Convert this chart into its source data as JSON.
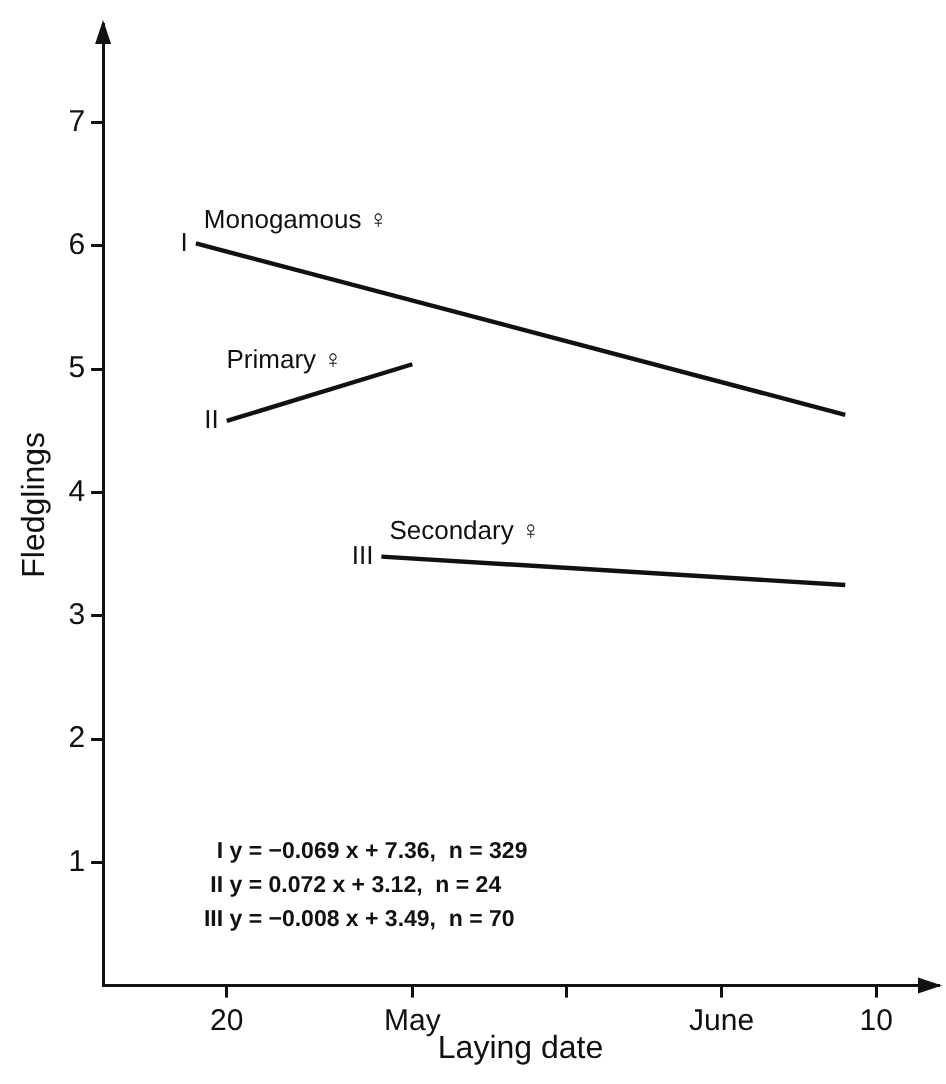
{
  "chart_data": {
    "type": "line",
    "xlabel": "Laying date",
    "ylabel": "Fledglings",
    "xlim": [
      "--05-16",
      "--06-12"
    ],
    "ylim": [
      0,
      7.8
    ],
    "xticks": [
      {
        "value": "--05-20",
        "label": "20"
      },
      {
        "value": "--05-26",
        "label": "May"
      },
      {
        "value": "--05-31",
        "label": null
      },
      {
        "value": "--06-05",
        "label": "June"
      },
      {
        "value": "--06-10",
        "label": "10"
      }
    ],
    "yticks": [
      1,
      2,
      3,
      4,
      5,
      6,
      7
    ],
    "grid": false,
    "legend": false,
    "marker": "none",
    "line_style": "solid",
    "series": [
      {
        "name": "Monogamous ♀",
        "color": "#111111",
        "x": [
          "--05-19",
          "--06-09"
        ],
        "values": [
          6.02,
          4.63
        ]
      },
      {
        "name": "Primary ♀",
        "color": "#111111",
        "x": [
          "--05-20",
          "--05-26"
        ],
        "values": [
          4.58,
          5.04
        ]
      },
      {
        "name": "Secondary ♀",
        "color": "#111111",
        "x": [
          "--05-25",
          "--06-09"
        ],
        "values": [
          3.48,
          3.25
        ]
      }
    ],
    "annotations": [
      {
        "text": "I",
        "x": "--05-19",
        "y": 6.02
      },
      {
        "text": "II",
        "x": "--05-20",
        "y": 4.58
      },
      {
        "text": "III",
        "x": "--05-25",
        "y": 3.48
      },
      "I y = −0.069 x + 7.36,  n = 329",
      "II y = 0.072 x + 3.12,  n = 24",
      "III y = −0.008 x + 3.49,  n = 70"
    ]
  }
}
